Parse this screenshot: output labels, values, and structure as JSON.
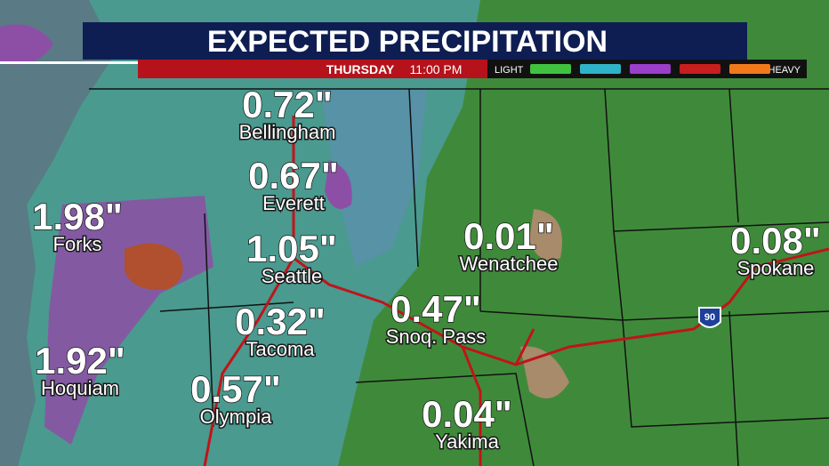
{
  "header": {
    "title": "EXPECTED PRECIPITATION",
    "day": "THURSDAY",
    "time": "11:00 PM"
  },
  "legend": {
    "low_label": "LIGHT",
    "high_label": "HEAVY",
    "colors": [
      "#3fc23f",
      "#2fb3c8",
      "#9a3fc9",
      "#c81e1e",
      "#f07a1a"
    ]
  },
  "highway": "90",
  "locations": [
    {
      "amount": "0.72\"",
      "name": "Bellingham"
    },
    {
      "amount": "0.67\"",
      "name": "Everett"
    },
    {
      "amount": "1.05\"",
      "name": "Seattle"
    },
    {
      "amount": "0.32\"",
      "name": "Tacoma"
    },
    {
      "amount": "0.57\"",
      "name": "Olympia"
    },
    {
      "amount": "1.98\"",
      "name": "Forks"
    },
    {
      "amount": "1.92\"",
      "name": "Hoquiam"
    },
    {
      "amount": "0.01\"",
      "name": "Wenatchee"
    },
    {
      "amount": "0.47\"",
      "name": "Snoq. Pass"
    },
    {
      "amount": "0.04\"",
      "name": "Yakima"
    },
    {
      "amount": "0.08\"",
      "name": "Spokane"
    }
  ]
}
